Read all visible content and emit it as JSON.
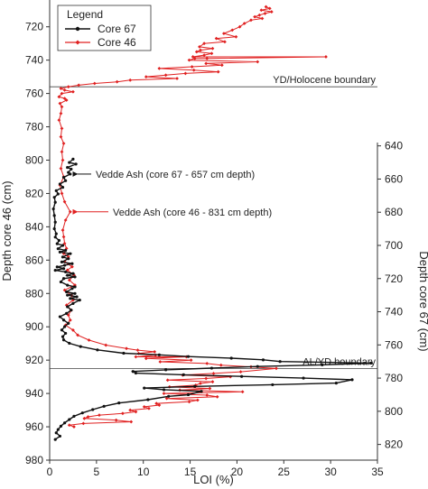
{
  "chart_data": {
    "type": "line",
    "xlabel": "LOI (%)",
    "ylabel_left": "Depth core 46 (cm)",
    "ylabel_right": "Depth core 67 (cm)",
    "xlim": [
      0,
      35
    ],
    "ylim_left": [
      980,
      705
    ],
    "ylim_right": [
      830,
      638
    ],
    "xticks": [
      0,
      5,
      10,
      15,
      20,
      25,
      30,
      35
    ],
    "yticks_left": [
      720,
      740,
      760,
      780,
      800,
      820,
      840,
      860,
      880,
      900,
      920,
      940,
      960,
      980
    ],
    "yticks_right": [
      640,
      660,
      680,
      700,
      720,
      740,
      760,
      780,
      800,
      820
    ],
    "legend": {
      "title": "Legend",
      "placement": "top-left",
      "entries": [
        {
          "label": "Core 67",
          "color": "#111111",
          "marker": "circle"
        },
        {
          "label": "Core 46",
          "color": "#e02020",
          "marker": "diamond"
        }
      ]
    },
    "boundaries": [
      {
        "label": "YD/Holocene boundary",
        "depth_core46": 756
      },
      {
        "label": "AL/YD boundary",
        "depth_core46": 925
      }
    ],
    "annotations": [
      {
        "label": "Vedde Ash (core 67 - 657 cm depth)",
        "series": "Core 67",
        "loi": 2.2,
        "depth_core67": 657
      },
      {
        "label": "Vedde Ash (core 46 - 831 cm depth)",
        "series": "Core 46",
        "loi": 2.2,
        "depth_core46": 831
      }
    ],
    "series": [
      {
        "name": "Core 46",
        "axis": "left",
        "color": "#e02020",
        "points": [
          [
            23.1,
            708
          ],
          [
            23.5,
            709
          ],
          [
            22.6,
            710
          ],
          [
            23.7,
            711
          ],
          [
            23.0,
            712
          ],
          [
            22.4,
            713
          ],
          [
            21.9,
            714
          ],
          [
            22.7,
            715
          ],
          [
            21.5,
            716
          ],
          [
            20.8,
            718
          ],
          [
            20.3,
            720
          ],
          [
            19.5,
            722
          ],
          [
            18.6,
            724
          ],
          [
            19.9,
            726
          ],
          [
            17.8,
            727
          ],
          [
            18.7,
            729
          ],
          [
            16.5,
            730
          ],
          [
            16.0,
            732
          ],
          [
            17.4,
            733
          ],
          [
            16.1,
            734
          ],
          [
            15.7,
            735
          ],
          [
            17.3,
            736
          ],
          [
            16.5,
            737
          ],
          [
            15.3,
            738
          ],
          [
            29.5,
            738
          ],
          [
            16.8,
            739
          ],
          [
            15.5,
            739
          ],
          [
            14.9,
            740
          ],
          [
            22.2,
            741
          ],
          [
            16.7,
            742
          ],
          [
            18.4,
            743
          ],
          [
            15.2,
            744
          ],
          [
            11.7,
            745
          ],
          [
            15.4,
            746
          ],
          [
            18.0,
            747
          ],
          [
            14.5,
            748
          ],
          [
            12.4,
            749
          ],
          [
            10.3,
            750
          ],
          [
            13.6,
            751
          ],
          [
            8.6,
            752
          ],
          [
            7.2,
            753
          ],
          [
            4.8,
            754
          ],
          [
            3.1,
            755
          ],
          [
            2.0,
            756
          ],
          [
            1.2,
            757
          ],
          [
            1.6,
            758
          ],
          [
            2.5,
            759
          ],
          [
            1.3,
            760
          ],
          [
            1.0,
            762
          ],
          [
            1.6,
            763
          ],
          [
            1.8,
            764
          ],
          [
            1.1,
            766
          ],
          [
            1.3,
            768
          ],
          [
            1.2,
            772
          ],
          [
            1.0,
            776
          ],
          [
            1.3,
            781
          ],
          [
            1.2,
            786
          ],
          [
            1.5,
            790
          ],
          [
            1.3,
            795
          ],
          [
            1.4,
            800
          ],
          [
            1.2,
            805
          ],
          [
            1.5,
            810
          ],
          [
            1.1,
            815
          ],
          [
            1.3,
            820
          ],
          [
            1.6,
            825
          ],
          [
            2.2,
            831
          ],
          [
            1.7,
            836
          ],
          [
            1.4,
            842
          ],
          [
            1.5,
            846
          ],
          [
            1.6,
            850
          ],
          [
            1.8,
            853
          ],
          [
            1.5,
            856
          ],
          [
            2.0,
            858
          ],
          [
            1.6,
            861
          ],
          [
            2.4,
            864
          ],
          [
            1.9,
            866
          ],
          [
            2.6,
            869
          ],
          [
            2.1,
            872
          ],
          [
            2.7,
            875
          ],
          [
            1.6,
            878
          ],
          [
            2.3,
            881
          ],
          [
            2.5,
            884
          ],
          [
            1.8,
            887
          ],
          [
            2.3,
            890
          ],
          [
            2.0,
            893
          ],
          [
            2.2,
            896
          ],
          [
            1.7,
            899
          ],
          [
            2.5,
            902
          ],
          [
            3.0,
            905
          ],
          [
            4.2,
            908
          ],
          [
            6.0,
            911
          ],
          [
            8.2,
            913
          ],
          [
            9.4,
            914
          ],
          [
            11.2,
            915
          ],
          [
            9.5,
            916
          ],
          [
            11.3,
            917
          ],
          [
            9.2,
            918
          ],
          [
            14.6,
            918
          ],
          [
            10.3,
            919
          ],
          [
            15.1,
            920
          ],
          [
            11.8,
            921
          ],
          [
            16.8,
            922
          ],
          [
            18.3,
            923
          ],
          [
            21.5,
            924
          ],
          [
            24.2,
            925
          ],
          [
            20.4,
            927
          ],
          [
            17.5,
            928
          ],
          [
            14.2,
            929
          ],
          [
            19.3,
            930
          ],
          [
            16.7,
            931
          ],
          [
            12.6,
            932
          ],
          [
            17.4,
            933
          ],
          [
            16.1,
            934
          ],
          [
            15.6,
            935
          ],
          [
            12.8,
            936
          ],
          [
            17.1,
            937
          ],
          [
            13.9,
            938
          ],
          [
            20.6,
            939
          ],
          [
            12.2,
            940
          ],
          [
            16.8,
            941
          ],
          [
            17.9,
            942
          ],
          [
            12.5,
            943
          ],
          [
            15.8,
            944
          ],
          [
            14.9,
            945
          ],
          [
            11.4,
            946
          ],
          [
            11.7,
            947
          ],
          [
            10.1,
            948
          ],
          [
            10.6,
            949
          ],
          [
            8.6,
            950
          ],
          [
            9.2,
            951
          ],
          [
            7.8,
            952
          ],
          [
            5.3,
            953
          ],
          [
            4.1,
            954
          ],
          [
            3.7,
            955
          ],
          [
            7.1,
            956
          ],
          [
            8.7,
            957
          ],
          [
            3.6,
            958
          ],
          [
            2.1,
            959
          ],
          [
            2.6,
            960
          ]
        ]
      },
      {
        "name": "Core 67",
        "axis": "right",
        "color": "#111111",
        "points": [
          [
            2.5,
            648
          ],
          [
            2.1,
            650
          ],
          [
            2.8,
            651
          ],
          [
            1.9,
            653
          ],
          [
            2.3,
            654
          ],
          [
            2.0,
            656
          ],
          [
            2.2,
            657
          ],
          [
            1.5,
            659
          ],
          [
            1.7,
            661
          ],
          [
            1.1,
            663
          ],
          [
            1.4,
            665
          ],
          [
            0.7,
            667
          ],
          [
            0.9,
            669
          ],
          [
            0.5,
            671
          ],
          [
            0.6,
            674
          ],
          [
            0.4,
            678
          ],
          [
            0.5,
            682
          ],
          [
            0.6,
            686
          ],
          [
            0.5,
            690
          ],
          [
            0.7,
            693
          ],
          [
            0.6,
            695
          ],
          [
            1.0,
            697
          ],
          [
            0.8,
            699
          ],
          [
            1.4,
            700
          ],
          [
            0.9,
            702
          ],
          [
            1.7,
            703
          ],
          [
            1.1,
            704
          ],
          [
            2.2,
            705
          ],
          [
            1.4,
            707
          ],
          [
            2.0,
            708
          ],
          [
            1.3,
            710
          ],
          [
            2.4,
            711
          ],
          [
            1.6,
            712
          ],
          [
            0.8,
            713
          ],
          [
            1.5,
            714
          ],
          [
            0.6,
            715
          ],
          [
            1.7,
            716
          ],
          [
            2.5,
            717
          ],
          [
            1.9,
            718
          ],
          [
            2.7,
            719
          ],
          [
            1.5,
            720
          ],
          [
            1.2,
            722
          ],
          [
            1.9,
            724
          ],
          [
            2.7,
            725
          ],
          [
            2.4,
            726
          ],
          [
            1.8,
            728
          ],
          [
            2.7,
            729
          ],
          [
            1.9,
            730
          ],
          [
            2.9,
            731
          ],
          [
            2.2,
            732
          ],
          [
            3.2,
            733
          ],
          [
            2.5,
            735
          ],
          [
            1.9,
            737
          ],
          [
            2.3,
            739
          ],
          [
            1.8,
            741
          ],
          [
            1.1,
            743
          ],
          [
            1.5,
            745
          ],
          [
            2.0,
            747
          ],
          [
            1.6,
            749
          ],
          [
            1.3,
            751
          ],
          [
            1.7,
            753
          ],
          [
            1.4,
            755
          ],
          [
            1.5,
            757
          ],
          [
            2.1,
            759
          ],
          [
            3.3,
            761
          ],
          [
            5.1,
            763
          ],
          [
            7.9,
            765
          ],
          [
            11.7,
            766
          ],
          [
            14.8,
            767
          ],
          [
            19.4,
            768
          ],
          [
            22.8,
            769
          ],
          [
            24.6,
            770
          ],
          [
            34.3,
            771
          ],
          [
            29.1,
            772
          ],
          [
            22.2,
            773
          ],
          [
            17.3,
            774
          ],
          [
            12.4,
            775
          ],
          [
            8.9,
            776
          ],
          [
            9.2,
            777
          ],
          [
            14.3,
            778
          ],
          [
            20.5,
            779
          ],
          [
            27.1,
            780
          ],
          [
            32.3,
            781
          ],
          [
            30.6,
            783
          ],
          [
            23.8,
            784
          ],
          [
            15.5,
            785
          ],
          [
            10.1,
            786
          ],
          [
            12.2,
            787
          ],
          [
            16.2,
            788
          ],
          [
            14.8,
            790
          ],
          [
            12.7,
            791
          ],
          [
            10.5,
            793
          ],
          [
            7.4,
            795
          ],
          [
            5.8,
            797
          ],
          [
            4.6,
            799
          ],
          [
            3.5,
            801
          ],
          [
            2.6,
            803
          ],
          [
            2.1,
            805
          ],
          [
            1.6,
            807
          ],
          [
            1.2,
            809
          ],
          [
            0.9,
            811
          ],
          [
            0.7,
            813
          ],
          [
            1.1,
            815
          ],
          [
            0.6,
            817
          ]
        ]
      }
    ]
  }
}
